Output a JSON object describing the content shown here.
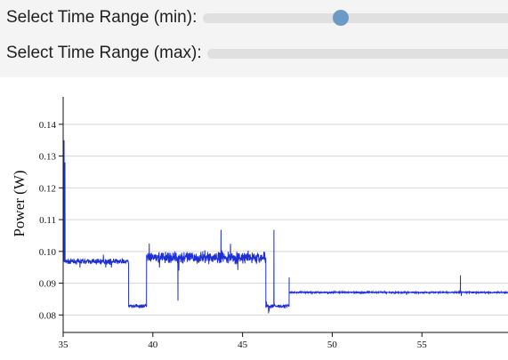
{
  "controls": {
    "min_label": "Select Time Range (min):",
    "max_label": "Select Time Range (max):",
    "min_slider_level": 0.44,
    "max_slider_level": 1.0,
    "thumb_color": "#6b9ac7"
  },
  "chart_data": {
    "type": "line",
    "title": "",
    "xlabel": "",
    "ylabel": "Power (W)",
    "xlim": [
      35,
      59.8
    ],
    "ylim": [
      0.0745,
      0.1475
    ],
    "x_ticks": [
      35,
      40,
      45,
      50,
      55
    ],
    "y_ticks": [
      0.08,
      0.09,
      0.1,
      0.11,
      0.12,
      0.13,
      0.14
    ],
    "grid": "horizontal",
    "line_color": "#1f2fd6",
    "series": [
      {
        "segments": [
          {
            "x_start": 35.0,
            "x_end": 38.65,
            "level": 0.0968,
            "noise": 0.0012
          },
          {
            "x_start": 38.65,
            "x_end": 39.65,
            "level": 0.0828,
            "noise": 0.0008
          },
          {
            "x_start": 39.65,
            "x_end": 46.3,
            "level": 0.098,
            "noise": 0.0026
          },
          {
            "x_start": 46.3,
            "x_end": 47.6,
            "level": 0.0828,
            "noise": 0.0008
          },
          {
            "x_start": 47.6,
            "x_end": 59.8,
            "level": 0.0871,
            "noise": 0.00035
          }
        ],
        "spikes": [
          {
            "x": 35.05,
            "y": 0.135
          },
          {
            "x": 35.1,
            "y": 0.128
          },
          {
            "x": 39.8,
            "y": 0.1025
          },
          {
            "x": 41.4,
            "y": 0.0845
          },
          {
            "x": 43.8,
            "y": 0.1068
          },
          {
            "x": 46.45,
            "y": 0.0805
          },
          {
            "x": 46.75,
            "y": 0.1068
          },
          {
            "x": 47.6,
            "y": 0.0918
          },
          {
            "x": 57.15,
            "y": 0.0925
          },
          {
            "x": 57.2,
            "y": 0.086
          }
        ]
      }
    ]
  }
}
